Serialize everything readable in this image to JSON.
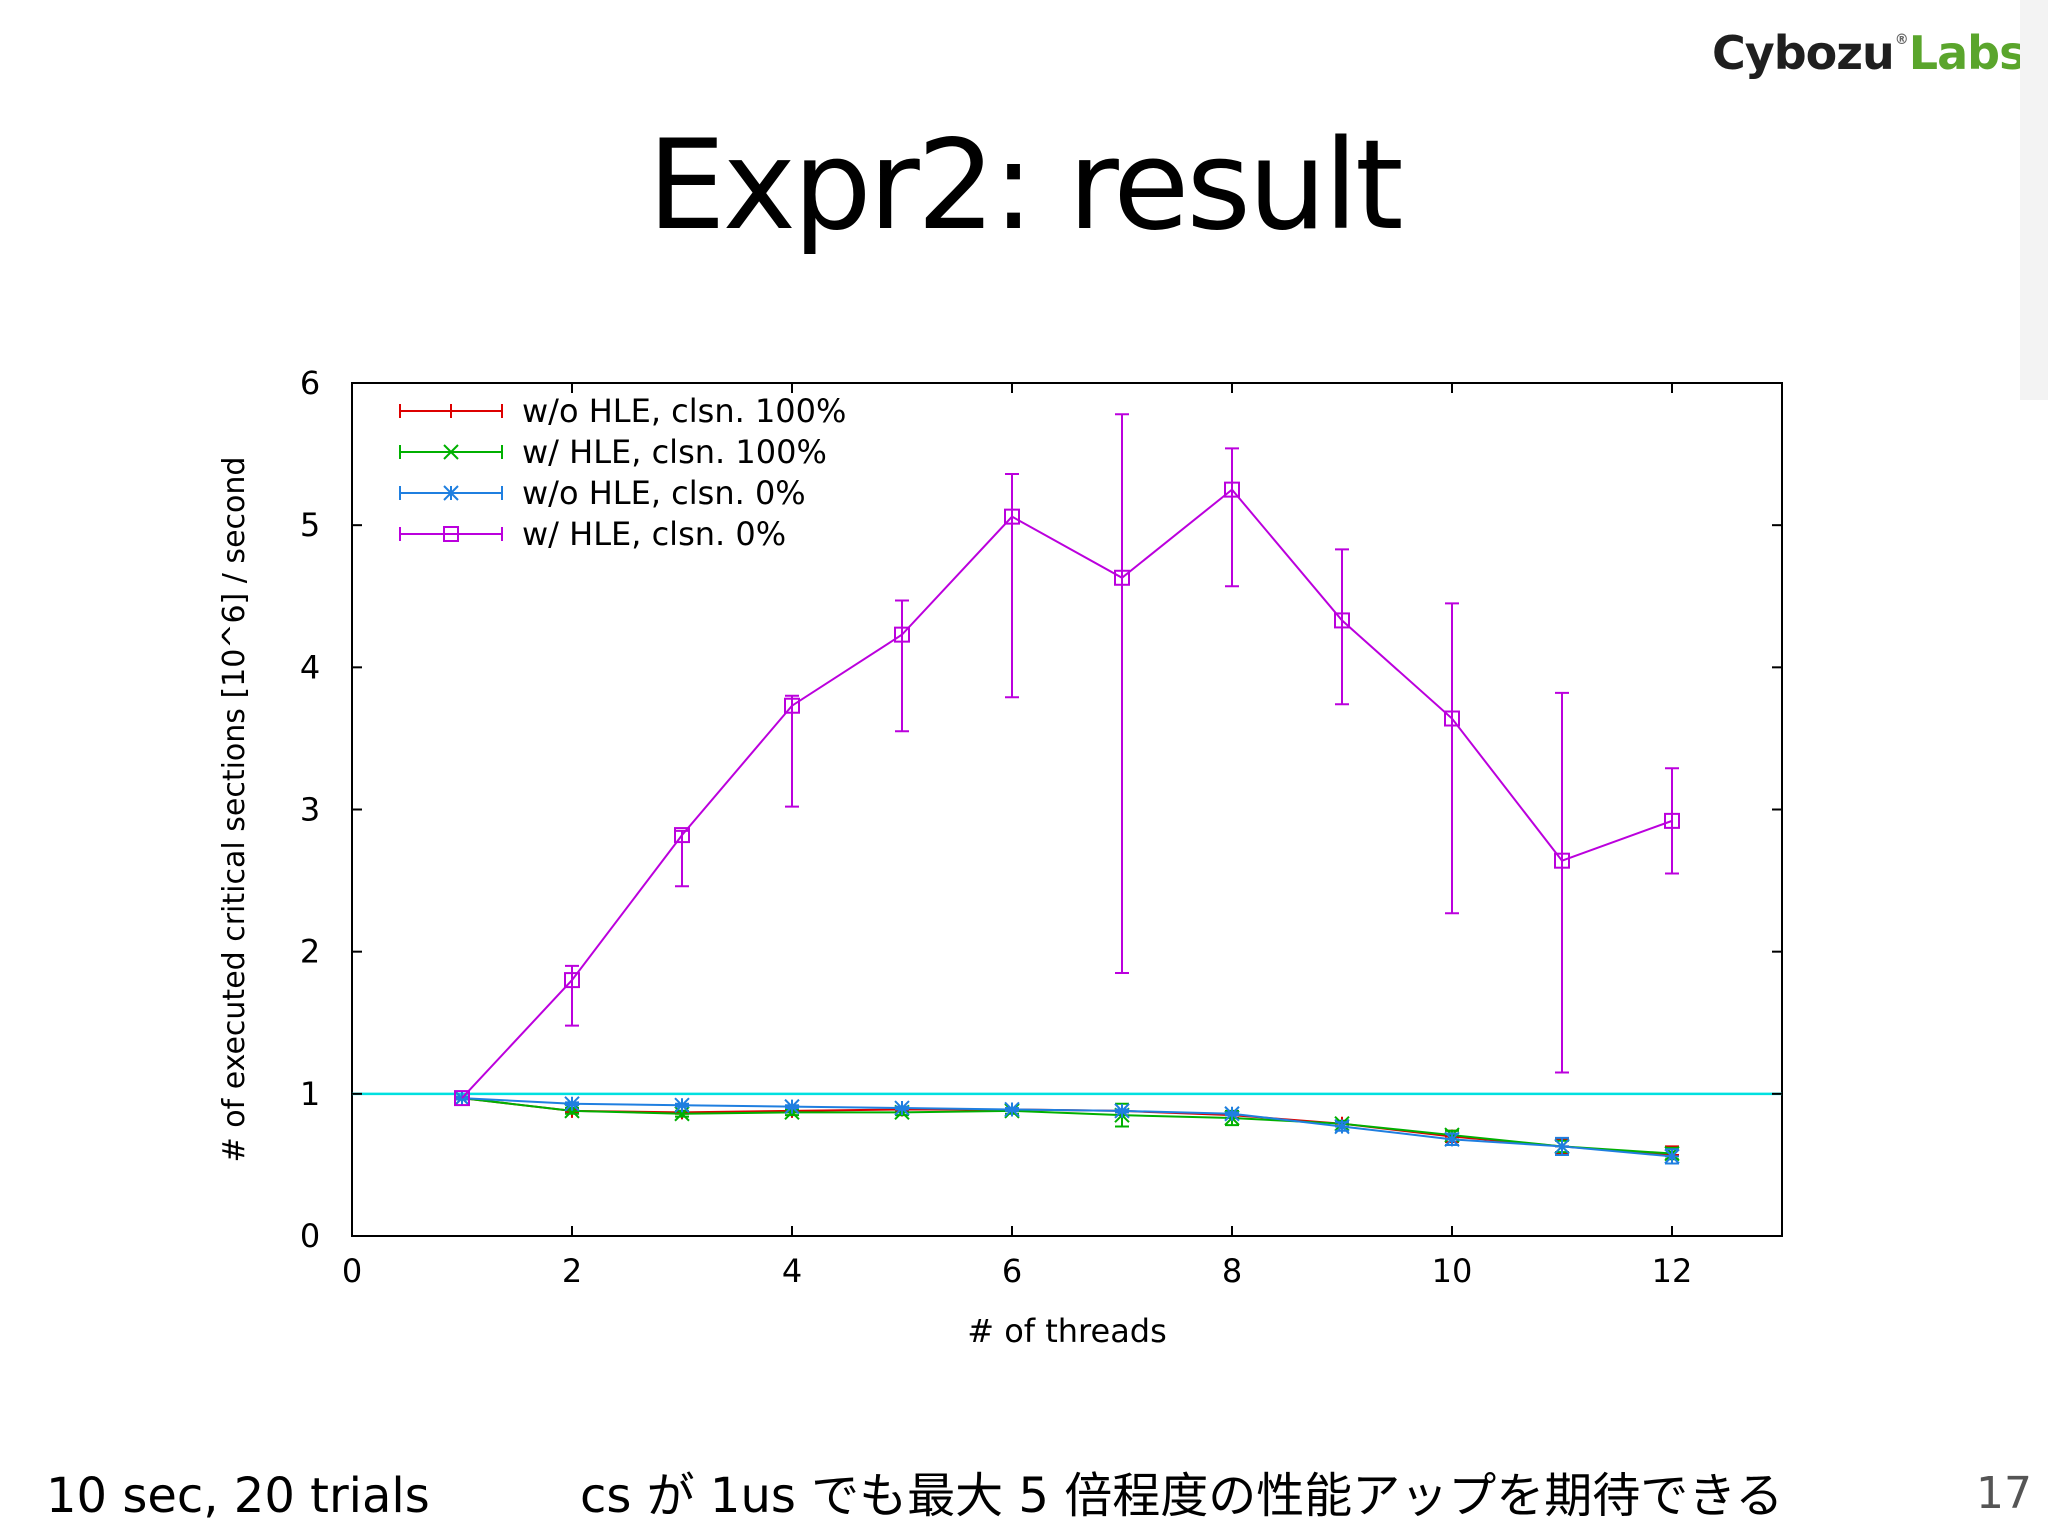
{
  "logo": {
    "part1": "Cybozu",
    "part2": "Labs",
    "mark": "®"
  },
  "title": "Expr2: result",
  "footer": {
    "left_note": "10 sec, 20 trials",
    "right_note": "cs が 1us でも最大 5 倍程度の性能アップを期待できる",
    "page_number": "17"
  },
  "chart_data": {
    "type": "line",
    "xlabel": "# of threads",
    "ylabel": "# of executed critical sections [10^6] / second",
    "xlim": [
      0,
      13
    ],
    "ylim": [
      0,
      6
    ],
    "xticks": [
      0,
      2,
      4,
      6,
      8,
      10,
      12
    ],
    "yticks": [
      0,
      1,
      2,
      3,
      4,
      5,
      6
    ],
    "legend_position": "top-left",
    "reference_line": {
      "y": 1,
      "color": "#00e0e0"
    },
    "x": [
      1,
      2,
      3,
      4,
      5,
      6,
      7,
      8,
      9,
      10,
      11,
      12
    ],
    "series": [
      {
        "name": "w/o HLE, clsn. 100%",
        "color": "#dd0000",
        "marker": "plus",
        "values": [
          0.97,
          0.88,
          0.87,
          0.88,
          0.89,
          0.89,
          0.88,
          0.85,
          0.79,
          0.7,
          0.63,
          0.57
        ],
        "err": [
          0.01,
          0.01,
          0.01,
          0.01,
          0.01,
          0.01,
          0.01,
          0.02,
          0.02,
          0.04,
          0.05,
          0.06
        ]
      },
      {
        "name": "w/ HLE, clsn. 100%",
        "color": "#00b000",
        "marker": "x",
        "values": [
          0.97,
          0.88,
          0.86,
          0.87,
          0.87,
          0.88,
          0.85,
          0.83,
          0.79,
          0.71,
          0.63,
          0.58
        ],
        "err": [
          0.01,
          0.02,
          0.02,
          0.02,
          0.02,
          0.02,
          0.08,
          0.05,
          0.02,
          0.03,
          0.04,
          0.04
        ]
      },
      {
        "name": "w/o HLE, clsn. 0%",
        "color": "#1f7fe0",
        "marker": "star",
        "values": [
          0.97,
          0.93,
          0.92,
          0.91,
          0.9,
          0.89,
          0.88,
          0.86,
          0.77,
          0.68,
          0.63,
          0.56
        ],
        "err": [
          0.01,
          0.01,
          0.01,
          0.01,
          0.01,
          0.01,
          0.01,
          0.01,
          0.03,
          0.04,
          0.06,
          0.05
        ]
      },
      {
        "name": "w/ HLE, clsn. 0%",
        "color": "#bb00dd",
        "marker": "square",
        "values": [
          0.97,
          1.8,
          2.82,
          3.73,
          4.23,
          5.06,
          4.63,
          5.25,
          4.33,
          3.64,
          2.64,
          2.92
        ],
        "err_low": [
          0.97,
          1.48,
          2.46,
          3.02,
          3.55,
          3.79,
          1.85,
          4.57,
          3.74,
          2.27,
          1.15,
          2.55
        ],
        "err_high": [
          0.97,
          1.9,
          2.85,
          3.8,
          4.47,
          5.36,
          5.78,
          5.54,
          4.83,
          4.45,
          3.82,
          3.29
        ]
      }
    ]
  }
}
